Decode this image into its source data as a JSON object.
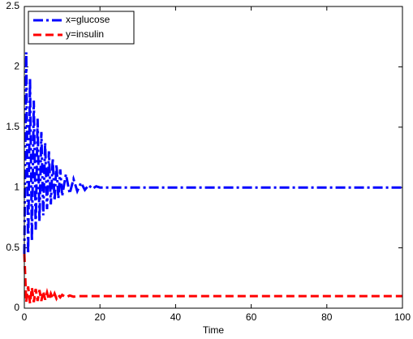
{
  "chart_data": {
    "type": "line",
    "x_label": "Time",
    "x": [
      0,
      0.5,
      1,
      1.5,
      2,
      2.5,
      3,
      3.5,
      4,
      4.5,
      5,
      5.5,
      6,
      6.5,
      7,
      7.5,
      8,
      8.5,
      9,
      9.5,
      10,
      11,
      12,
      13,
      14,
      15,
      16,
      17,
      18,
      19,
      20,
      25,
      30,
      35,
      40,
      45,
      50,
      55,
      60,
      65,
      70,
      75,
      80,
      85,
      90,
      95,
      100
    ],
    "series": [
      {
        "name": "x=glucose",
        "color": "#0000ff",
        "dash": "dash-dot",
        "values": [
          0.45,
          2.12,
          0.45,
          1.9,
          0.56,
          1.72,
          0.65,
          1.57,
          0.72,
          1.46,
          0.77,
          1.37,
          0.82,
          1.3,
          0.86,
          1.24,
          0.89,
          1.19,
          0.91,
          1.15,
          0.93,
          1.11,
          0.95,
          1.07,
          0.97,
          1.04,
          0.98,
          1.02,
          0.99,
          1.01,
          1.0,
          1,
          1,
          1,
          1,
          1,
          1,
          1,
          1,
          1,
          1,
          1,
          1,
          1,
          1,
          1,
          1
        ]
      },
      {
        "name": "y=insulin",
        "color": "#ff0000",
        "dash": "dashed",
        "values": [
          0.45,
          0.05,
          0.18,
          0.04,
          0.17,
          0.05,
          0.16,
          0.06,
          0.15,
          0.06,
          0.14,
          0.07,
          0.13,
          0.07,
          0.12,
          0.08,
          0.12,
          0.08,
          0.11,
          0.09,
          0.11,
          0.09,
          0.105,
          0.095,
          0.1,
          0.1,
          0.1,
          0.1,
          0.1,
          0.1,
          0.1,
          0.1,
          0.1,
          0.1,
          0.1,
          0.1,
          0.1,
          0.1,
          0.1,
          0.1,
          0.1,
          0.1,
          0.1,
          0.1,
          0.1,
          0.1,
          0.1
        ]
      }
    ],
    "xlim": [
      0,
      100
    ],
    "xticks": [
      0,
      20,
      40,
      60,
      80,
      100
    ],
    "ylim": [
      0,
      2.5
    ],
    "yticks": [
      0,
      0.5,
      1,
      1.5,
      2,
      2.5
    ],
    "grid": false,
    "legend": "top-left"
  }
}
